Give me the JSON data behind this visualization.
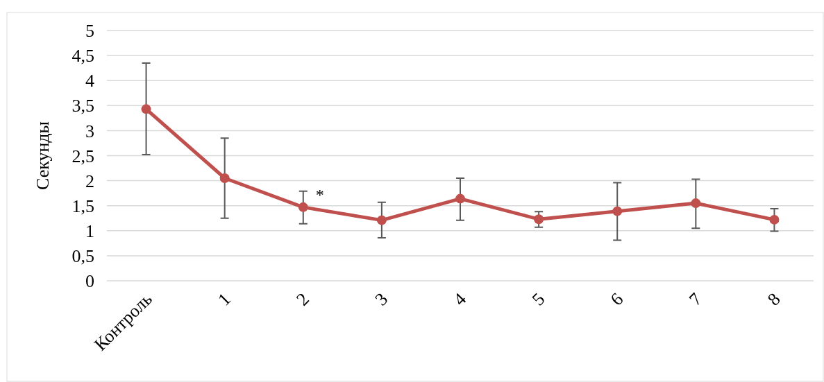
{
  "chart_data": {
    "type": "line",
    "ylabel": "Секунды",
    "categories": [
      "Контроль",
      "1",
      "2",
      "3",
      "4",
      "5",
      "6",
      "7",
      "8"
    ],
    "series": [
      {
        "color": "#c0504d",
        "values": [
          3.43,
          2.05,
          1.47,
          1.21,
          1.64,
          1.23,
          1.39,
          1.55,
          1.22
        ],
        "errors": [
          [
            2.52,
            4.35
          ],
          [
            1.25,
            2.85
          ],
          [
            1.14,
            1.79
          ],
          [
            0.86,
            1.57
          ],
          [
            1.21,
            2.05
          ],
          [
            1.07,
            1.38
          ],
          [
            0.81,
            1.96
          ],
          [
            1.05,
            2.03
          ],
          [
            0.99,
            1.44
          ]
        ]
      }
    ],
    "ylim": [
      0,
      5
    ],
    "yticks": [
      {
        "value": 0,
        "label": "0"
      },
      {
        "value": 0.5,
        "label": "0,5"
      },
      {
        "value": 1,
        "label": "1"
      },
      {
        "value": 1.5,
        "label": "1,5"
      },
      {
        "value": 2,
        "label": "2"
      },
      {
        "value": 2.5,
        "label": "2,5"
      },
      {
        "value": 3,
        "label": "3"
      },
      {
        "value": 3.5,
        "label": "3,5"
      },
      {
        "value": 4,
        "label": "4"
      },
      {
        "value": 4.5,
        "label": "4,5"
      },
      {
        "value": 5,
        "label": "5"
      }
    ],
    "grid": "y",
    "marker": "circle",
    "line_style": "solid",
    "annotations": [
      {
        "text": "*",
        "x": "2",
        "y": 1.47
      }
    ]
  }
}
